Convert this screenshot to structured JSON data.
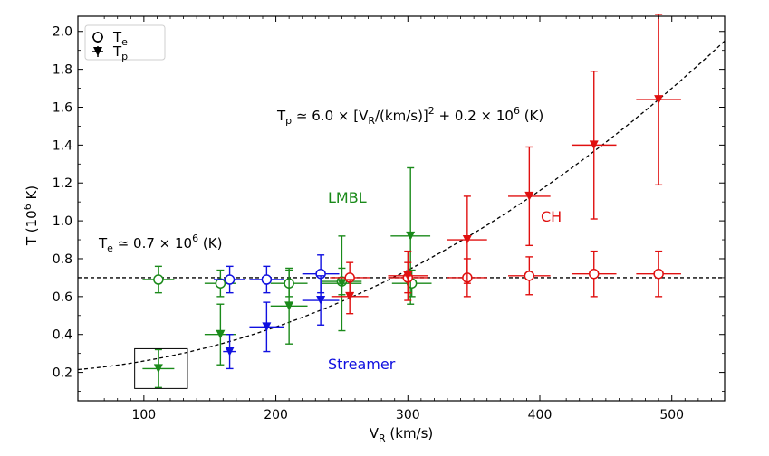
{
  "chart_data": {
    "type": "scatter",
    "xlabel": "V",
    "xlabel_sub": "R",
    "xlabel_unit": " (km/s)",
    "ylabel": "T (10",
    "ylabel_sup": "6",
    "ylabel_unit": " K)",
    "xlim": [
      50,
      540
    ],
    "ylim": [
      0.05,
      2.08
    ],
    "xticks": [
      100,
      200,
      300,
      400,
      500
    ],
    "xtick_labels": [
      "100",
      "200",
      "300",
      "400",
      "500"
    ],
    "yticks": [
      0.2,
      0.4,
      0.6,
      0.8,
      1.0,
      1.2,
      1.4,
      1.6,
      1.8,
      2.0
    ],
    "ytick_labels": [
      "0.2",
      "0.4",
      "0.6",
      "0.8",
      "1.0",
      "1.2",
      "1.4",
      "1.6",
      "1.8",
      "2.0"
    ],
    "grid": false,
    "legend": {
      "position": "top-left",
      "entries": [
        {
          "base": "T",
          "sub": "e",
          "marker": "open-circle"
        },
        {
          "base": "T",
          "sub": "p",
          "marker": "filled-triangle-down"
        }
      ]
    },
    "annotations": {
      "te_relation": {
        "base": "T",
        "sub": "e",
        "rest": " ≃ 0.7 × 10",
        "sup": "6",
        "tail": " (K)"
      },
      "tp_relation": {
        "base": "T",
        "sub": "p",
        "a": " ≃ 6.0 × [V",
        "sub2": "R",
        "b": "/(km/s)]",
        "sup1": "2",
        "c": " + 0.2 × 10",
        "sup2": "6",
        "tail": " (K)"
      },
      "lmbl": "LMBL",
      "ch": "CH",
      "streamer": "Streamer"
    },
    "colors": {
      "LMBL": "#1a8a1a",
      "Streamer": "#1010e0",
      "CH": "#e01010",
      "fit": "#000000"
    },
    "te_level": 0.7,
    "tp_fit": {
      "coef": 6.0,
      "offset": 0.2
    },
    "highlight_box": {
      "x": [
        93,
        133
      ],
      "y": [
        0.115,
        0.325
      ]
    },
    "series": [
      {
        "region": "LMBL",
        "quantity": "Te",
        "points": [
          {
            "x": 111,
            "y": 0.69,
            "xerr": 12,
            "yerr": 0.07
          },
          {
            "x": 158,
            "y": 0.67,
            "xerr": 12,
            "yerr": 0.07
          },
          {
            "x": 210,
            "y": 0.67,
            "xerr": 14,
            "yerr": 0.07
          },
          {
            "x": 250,
            "y": 0.68,
            "xerr": 15,
            "yerr": 0.07
          },
          {
            "x": 303,
            "y": 0.67,
            "xerr": 15,
            "yerr": 0.07
          }
        ]
      },
      {
        "region": "LMBL",
        "quantity": "Tp",
        "points": [
          {
            "x": 111,
            "y": 0.22,
            "xerr": 12,
            "yerr": 0.1
          },
          {
            "x": 158,
            "y": 0.4,
            "xerr": 12,
            "yerr": 0.16
          },
          {
            "x": 210,
            "y": 0.55,
            "xerr": 14,
            "yerr": 0.2
          },
          {
            "x": 250,
            "y": 0.67,
            "xerr": 15,
            "yerr": 0.25
          },
          {
            "x": 302,
            "y": 0.92,
            "xerr": 15,
            "yerr": 0.36
          }
        ]
      },
      {
        "region": "Streamer",
        "quantity": "Te",
        "points": [
          {
            "x": 165,
            "y": 0.69,
            "xerr": 12,
            "yerr": 0.07
          },
          {
            "x": 193,
            "y": 0.69,
            "xerr": 13,
            "yerr": 0.07
          },
          {
            "x": 234,
            "y": 0.72,
            "xerr": 14,
            "yerr": 0.1
          }
        ]
      },
      {
        "region": "Streamer",
        "quantity": "Tp",
        "points": [
          {
            "x": 165,
            "y": 0.31,
            "xerr": 5,
            "yerr": 0.09
          },
          {
            "x": 193,
            "y": 0.44,
            "xerr": 13,
            "yerr": 0.13
          },
          {
            "x": 234,
            "y": 0.58,
            "xerr": 14,
            "yerr": 0.13
          }
        ]
      },
      {
        "region": "CH",
        "quantity": "Te",
        "points": [
          {
            "x": 256,
            "y": 0.7,
            "xerr": 15,
            "yerr": 0.08
          },
          {
            "x": 300,
            "y": 0.7,
            "xerr": 15,
            "yerr": 0.08
          },
          {
            "x": 345,
            "y": 0.7,
            "xerr": 15,
            "yerr": 0.1
          },
          {
            "x": 392,
            "y": 0.71,
            "xerr": 16,
            "yerr": 0.1
          },
          {
            "x": 441,
            "y": 0.72,
            "xerr": 17,
            "yerr": 0.12
          },
          {
            "x": 490,
            "y": 0.72,
            "xerr": 17,
            "yerr": 0.12
          }
        ]
      },
      {
        "region": "CH",
        "quantity": "Tp",
        "points": [
          {
            "x": 256,
            "y": 0.6,
            "xerr": 14,
            "yerr": 0.09
          },
          {
            "x": 300,
            "y": 0.71,
            "xerr": 15,
            "yerr": 0.13
          },
          {
            "x": 345,
            "y": 0.9,
            "xerr": 15,
            "yerr": 0.23
          },
          {
            "x": 392,
            "y": 1.13,
            "xerr": 16,
            "yerr": 0.26
          },
          {
            "x": 441,
            "y": 1.4,
            "xerr": 17,
            "yerr": 0.39
          },
          {
            "x": 490,
            "y": 1.64,
            "xerr": 17,
            "yerr": 0.45
          }
        ]
      }
    ]
  }
}
